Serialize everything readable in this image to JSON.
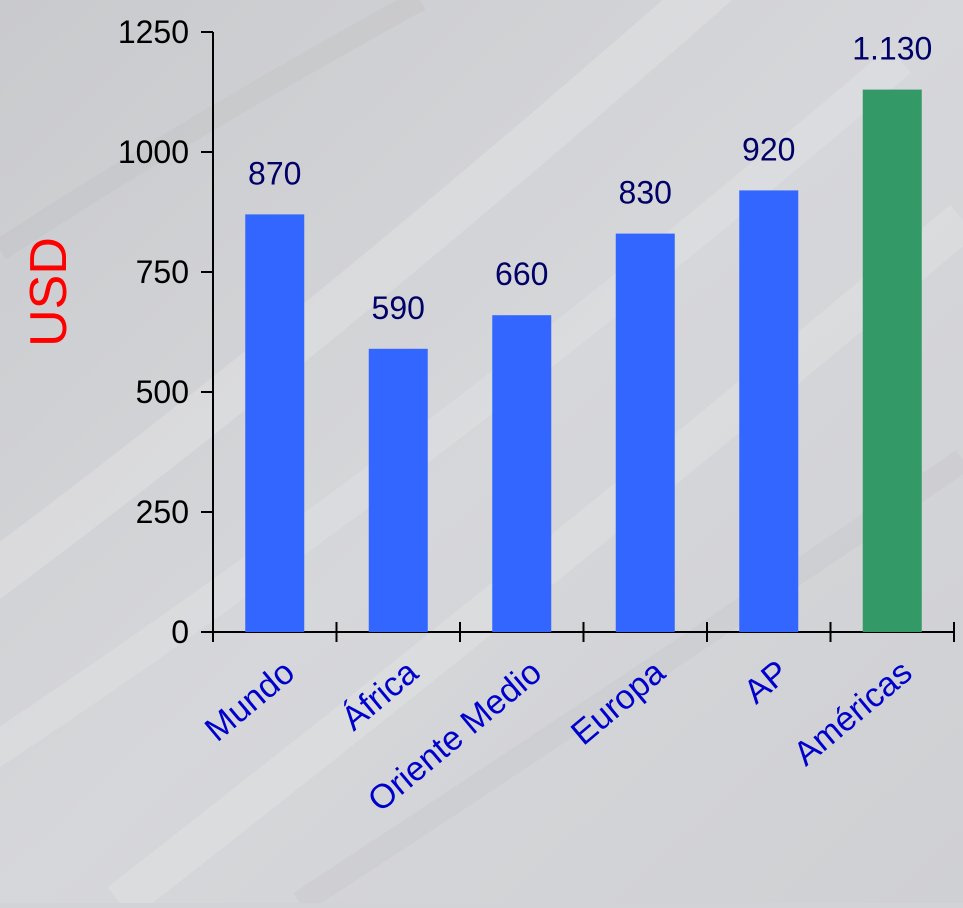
{
  "chart_data": {
    "type": "bar",
    "categories": [
      "Mundo",
      "África",
      "Oriente Medio",
      "Europa",
      "AP",
      "Américas"
    ],
    "values": [
      870,
      590,
      660,
      830,
      920,
      1130
    ],
    "value_labels": [
      "870",
      "590",
      "660",
      "830",
      "920",
      "1.130"
    ],
    "bar_colors": [
      "#3366ff",
      "#3366ff",
      "#3366ff",
      "#3366ff",
      "#3366ff",
      "#339966"
    ],
    "ylabel": "USD",
    "ylim": [
      0,
      1250
    ],
    "yticks": [
      0,
      250,
      500,
      750,
      1000,
      1250
    ],
    "grid": false,
    "legend": "none"
  },
  "colors": {
    "ylabel": "#ff0000",
    "category_labels": "#0000cc",
    "value_labels": "#000066",
    "axis": "#000000"
  }
}
